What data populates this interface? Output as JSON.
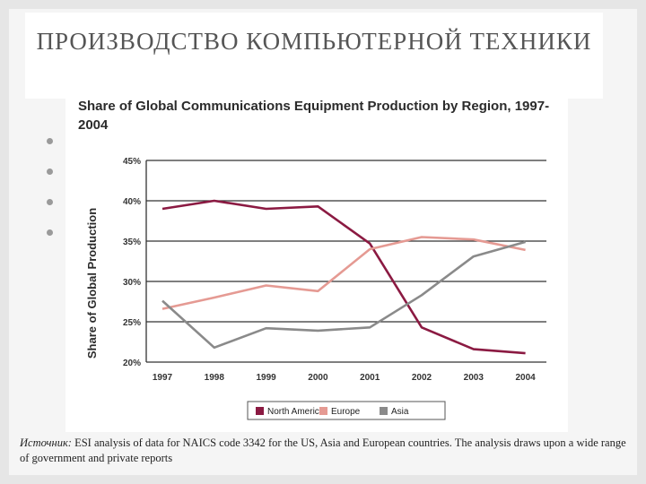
{
  "slide": {
    "title": "ПРОИЗВОДСТВО КОМПЬЮТЕРНОЙ ТЕХНИКИ",
    "bullets": [
      "",
      "",
      "",
      ""
    ],
    "source_label": "Источник:",
    "source_text": "ESI analysis of data for NAICS code 3342 for the US, Asia and European countries. The analysis draws upon a wide range of government and private reports"
  },
  "chart_data": {
    "type": "line",
    "title": "Share of Global Communications Equipment Production by Region, 1997-2004",
    "xlabel": "",
    "ylabel": "Share of Global Production",
    "categories": [
      "1997",
      "1998",
      "1999",
      "2000",
      "2001",
      "2002",
      "2003",
      "2004"
    ],
    "y_ticks": [
      "20%",
      "25%",
      "30%",
      "35%",
      "40%",
      "45%"
    ],
    "ylim": [
      20,
      45
    ],
    "grid": "horizontal",
    "legend_position": "bottom",
    "series": [
      {
        "name": "North America",
        "color": "#8b1a42",
        "values": [
          39.0,
          40.0,
          39.0,
          39.3,
          34.7,
          24.3,
          21.6,
          21.1
        ]
      },
      {
        "name": "Europe",
        "color": "#e59a93",
        "values": [
          26.6,
          28.0,
          29.5,
          28.8,
          34.0,
          35.5,
          35.2,
          33.9
        ]
      },
      {
        "name": "Asia",
        "color": "#8a8a8a",
        "values": [
          27.6,
          21.8,
          24.2,
          23.9,
          24.3,
          28.3,
          33.1,
          34.9
        ]
      }
    ]
  }
}
